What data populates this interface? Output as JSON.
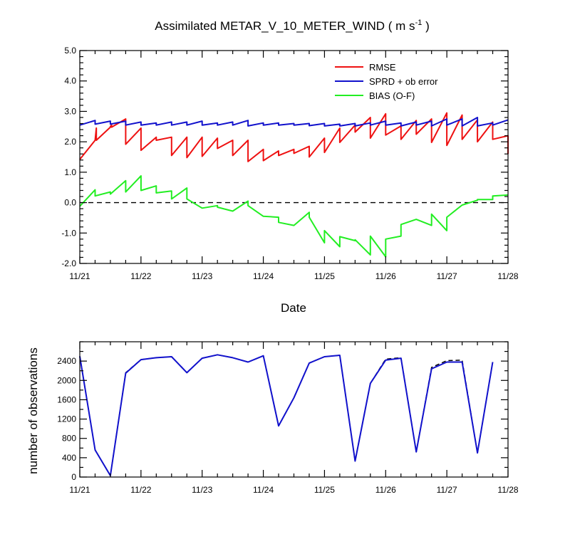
{
  "chart_data": [
    {
      "type": "line",
      "title": "Assimilated METAR_V_10_METER_WIND",
      "title_units": "( m s",
      "title_units_exp": "-1",
      "title_units_close": " )",
      "xlabel": "Date",
      "ylabel": "",
      "x_tick_labels": [
        "11/21",
        "11/22",
        "11/23",
        "11/24",
        "11/25",
        "11/26",
        "11/27",
        "11/28"
      ],
      "xlim": [
        0,
        7
      ],
      "ylim": [
        -2,
        5
      ],
      "y_ticks": [
        -2.0,
        -1.0,
        0.0,
        1.0,
        2.0,
        3.0,
        4.0,
        5.0
      ],
      "y_tick_labels": [
        "-2.0",
        "-1.0",
        "0.0",
        "1.0",
        "2.0",
        "3.0",
        "4.0",
        "5.0"
      ],
      "reference_line": {
        "y": 0,
        "style": "dashed",
        "color": "#000000"
      },
      "legend_placement": "top-right",
      "grid": false,
      "series": [
        {
          "name": "RMSE",
          "color": "#ee1111",
          "points": [
            [
              0.0,
              1.42
            ],
            [
              0.25,
              2.05
            ],
            [
              0.25,
              2.05
            ],
            [
              0.27,
              2.45
            ],
            [
              0.27,
              2.05
            ],
            [
              0.5,
              2.48
            ],
            [
              0.5,
              2.5
            ],
            [
              0.52,
              2.55
            ],
            [
              0.52,
              2.48
            ],
            [
              0.75,
              2.75
            ],
            [
              0.75,
              1.92
            ],
            [
              1.0,
              2.45
            ],
            [
              1.0,
              1.72
            ],
            [
              1.25,
              2.15
            ],
            [
              1.25,
              2.05
            ],
            [
              1.5,
              2.15
            ],
            [
              1.5,
              1.55
            ],
            [
              1.75,
              2.15
            ],
            [
              1.75,
              1.48
            ],
            [
              2.0,
              2.15
            ],
            [
              2.0,
              1.52
            ],
            [
              2.25,
              2.12
            ],
            [
              2.25,
              1.78
            ],
            [
              2.5,
              2.05
            ],
            [
              2.5,
              1.55
            ],
            [
              2.75,
              2.05
            ],
            [
              2.75,
              1.35
            ],
            [
              3.0,
              1.75
            ],
            [
              3.0,
              1.38
            ],
            [
              3.25,
              1.7
            ],
            [
              3.25,
              1.55
            ],
            [
              3.5,
              1.75
            ],
            [
              3.5,
              1.62
            ],
            [
              3.75,
              1.85
            ],
            [
              3.75,
              1.5
            ],
            [
              4.0,
              2.12
            ],
            [
              4.0,
              1.65
            ],
            [
              4.25,
              2.45
            ],
            [
              4.25,
              1.98
            ],
            [
              4.5,
              2.55
            ],
            [
              4.5,
              2.32
            ],
            [
              4.75,
              2.8
            ],
            [
              4.75,
              2.12
            ],
            [
              5.0,
              2.92
            ],
            [
              5.0,
              2.22
            ],
            [
              5.25,
              2.52
            ],
            [
              5.25,
              2.08
            ],
            [
              5.5,
              2.7
            ],
            [
              5.5,
              2.25
            ],
            [
              5.75,
              2.75
            ],
            [
              5.75,
              1.98
            ],
            [
              6.0,
              2.95
            ],
            [
              6.0,
              1.88
            ],
            [
              6.25,
              2.88
            ],
            [
              6.25,
              2.08
            ],
            [
              6.5,
              2.72
            ],
            [
              6.5,
              2.0
            ],
            [
              6.75,
              2.65
            ],
            [
              6.75,
              2.08
            ],
            [
              7.0,
              2.2
            ],
            [
              7.0,
              1.6
            ]
          ]
        },
        {
          "name": "SPRD + ob error",
          "color": "#1111cc",
          "points": [
            [
              0.0,
              2.55
            ],
            [
              0.25,
              2.7
            ],
            [
              0.25,
              2.58
            ],
            [
              0.5,
              2.68
            ],
            [
              0.5,
              2.58
            ],
            [
              0.75,
              2.68
            ],
            [
              0.75,
              2.55
            ],
            [
              1.0,
              2.65
            ],
            [
              1.0,
              2.55
            ],
            [
              1.25,
              2.62
            ],
            [
              1.25,
              2.55
            ],
            [
              1.5,
              2.65
            ],
            [
              1.5,
              2.55
            ],
            [
              1.75,
              2.65
            ],
            [
              1.75,
              2.55
            ],
            [
              2.0,
              2.68
            ],
            [
              2.0,
              2.55
            ],
            [
              2.25,
              2.62
            ],
            [
              2.25,
              2.55
            ],
            [
              2.5,
              2.65
            ],
            [
              2.5,
              2.55
            ],
            [
              2.75,
              2.7
            ],
            [
              2.75,
              2.52
            ],
            [
              3.0,
              2.62
            ],
            [
              3.0,
              2.55
            ],
            [
              3.25,
              2.62
            ],
            [
              3.25,
              2.55
            ],
            [
              3.5,
              2.6
            ],
            [
              3.5,
              2.55
            ],
            [
              3.75,
              2.6
            ],
            [
              3.75,
              2.53
            ],
            [
              4.0,
              2.6
            ],
            [
              4.0,
              2.52
            ],
            [
              4.25,
              2.58
            ],
            [
              4.25,
              2.52
            ],
            [
              4.5,
              2.6
            ],
            [
              4.5,
              2.52
            ],
            [
              4.75,
              2.62
            ],
            [
              4.75,
              2.55
            ],
            [
              5.0,
              2.68
            ],
            [
              5.0,
              2.55
            ],
            [
              5.25,
              2.62
            ],
            [
              5.25,
              2.52
            ],
            [
              5.5,
              2.65
            ],
            [
              5.5,
              2.55
            ],
            [
              5.75,
              2.68
            ],
            [
              5.75,
              2.52
            ],
            [
              6.0,
              2.75
            ],
            [
              6.0,
              2.55
            ],
            [
              6.25,
              2.75
            ],
            [
              6.25,
              2.52
            ],
            [
              6.5,
              2.8
            ],
            [
              6.5,
              2.52
            ],
            [
              6.75,
              2.62
            ],
            [
              6.75,
              2.55
            ],
            [
              7.0,
              2.72
            ]
          ]
        },
        {
          "name": "BIAS (O-F)",
          "color": "#22ee22",
          "points": [
            [
              0.0,
              -0.12
            ],
            [
              0.25,
              0.42
            ],
            [
              0.25,
              0.22
            ],
            [
              0.5,
              0.35
            ],
            [
              0.5,
              0.28
            ],
            [
              0.75,
              0.72
            ],
            [
              0.75,
              0.35
            ],
            [
              1.0,
              0.88
            ],
            [
              1.0,
              0.4
            ],
            [
              1.25,
              0.55
            ],
            [
              1.25,
              0.32
            ],
            [
              1.5,
              0.38
            ],
            [
              1.5,
              0.12
            ],
            [
              1.75,
              0.48
            ],
            [
              1.75,
              0.12
            ],
            [
              2.0,
              -0.18
            ],
            [
              2.0,
              -0.18
            ],
            [
              2.25,
              -0.1
            ],
            [
              2.25,
              -0.15
            ],
            [
              2.5,
              -0.28
            ],
            [
              2.5,
              -0.28
            ],
            [
              2.75,
              0.05
            ],
            [
              2.75,
              -0.1
            ],
            [
              3.0,
              -0.45
            ],
            [
              3.0,
              -0.45
            ],
            [
              3.25,
              -0.48
            ],
            [
              3.25,
              -0.65
            ],
            [
              3.5,
              -0.75
            ],
            [
              3.5,
              -0.75
            ],
            [
              3.75,
              -0.32
            ],
            [
              3.75,
              -0.48
            ],
            [
              4.0,
              -1.32
            ],
            [
              4.0,
              -0.92
            ],
            [
              4.25,
              -1.45
            ],
            [
              4.25,
              -1.12
            ],
            [
              4.5,
              -1.25
            ],
            [
              4.5,
              -1.22
            ],
            [
              4.75,
              -1.72
            ],
            [
              4.75,
              -1.1
            ],
            [
              5.0,
              -1.78
            ],
            [
              5.0,
              -1.2
            ],
            [
              5.25,
              -1.1
            ],
            [
              5.25,
              -0.72
            ],
            [
              5.5,
              -0.55
            ],
            [
              5.5,
              -0.55
            ],
            [
              5.75,
              -0.75
            ],
            [
              5.75,
              -0.38
            ],
            [
              6.0,
              -0.92
            ],
            [
              6.0,
              -0.48
            ],
            [
              6.25,
              -0.08
            ],
            [
              6.25,
              -0.08
            ],
            [
              6.5,
              0.08
            ],
            [
              6.5,
              0.1
            ],
            [
              6.75,
              0.1
            ],
            [
              6.75,
              0.22
            ],
            [
              7.0,
              0.25
            ]
          ]
        }
      ]
    },
    {
      "type": "line",
      "title": "",
      "xlabel": "",
      "ylabel": "number of observations",
      "x_tick_labels": [
        "11/21",
        "11/22",
        "11/23",
        "11/24",
        "11/25",
        "11/26",
        "11/27",
        "11/28"
      ],
      "xlim": [
        0,
        7
      ],
      "ylim": [
        0,
        2800
      ],
      "y_ticks": [
        0,
        400,
        800,
        1200,
        1600,
        2000,
        2400
      ],
      "y_tick_labels": [
        "0",
        "400",
        "800",
        "1200",
        "1600",
        "2000",
        "2400"
      ],
      "grid": false,
      "series": [
        {
          "style": "dashed",
          "color": "#000000",
          "points": [
            [
              0.0,
              2500
            ],
            [
              0.25,
              560
            ],
            [
              0.5,
              30
            ],
            [
              0.75,
              2160
            ],
            [
              1.0,
              2430
            ],
            [
              1.25,
              2470
            ],
            [
              1.5,
              2490
            ],
            [
              1.75,
              2160
            ],
            [
              2.0,
              2460
            ],
            [
              2.25,
              2530
            ],
            [
              2.5,
              2470
            ],
            [
              2.75,
              2380
            ],
            [
              3.0,
              2510
            ],
            [
              3.25,
              1060
            ],
            [
              3.5,
              1640
            ],
            [
              3.75,
              2360
            ],
            [
              4.0,
              2490
            ],
            [
              4.25,
              2520
            ],
            [
              4.5,
              330
            ],
            [
              4.75,
              1940
            ],
            [
              5.0,
              2440
            ],
            [
              5.25,
              2470
            ],
            [
              5.5,
              520
            ],
            [
              5.75,
              2270
            ],
            [
              6.0,
              2410
            ],
            [
              6.25,
              2420
            ],
            [
              6.5,
              500
            ],
            [
              6.75,
              2380
            ]
          ]
        },
        {
          "color": "#1111cc",
          "points": [
            [
              0.0,
              2500
            ],
            [
              0.25,
              560
            ],
            [
              0.5,
              30
            ],
            [
              0.75,
              2150
            ],
            [
              1.0,
              2430
            ],
            [
              1.25,
              2470
            ],
            [
              1.5,
              2490
            ],
            [
              1.75,
              2160
            ],
            [
              2.0,
              2460
            ],
            [
              2.25,
              2530
            ],
            [
              2.5,
              2470
            ],
            [
              2.75,
              2380
            ],
            [
              3.0,
              2510
            ],
            [
              3.25,
              1060
            ],
            [
              3.5,
              1640
            ],
            [
              3.75,
              2360
            ],
            [
              4.0,
              2490
            ],
            [
              4.25,
              2520
            ],
            [
              4.5,
              330
            ],
            [
              4.75,
              1940
            ],
            [
              5.0,
              2420
            ],
            [
              5.25,
              2460
            ],
            [
              5.5,
              520
            ],
            [
              5.75,
              2240
            ],
            [
              6.0,
              2380
            ],
            [
              6.25,
              2380
            ],
            [
              6.5,
              500
            ],
            [
              6.75,
              2380
            ]
          ]
        }
      ]
    }
  ]
}
